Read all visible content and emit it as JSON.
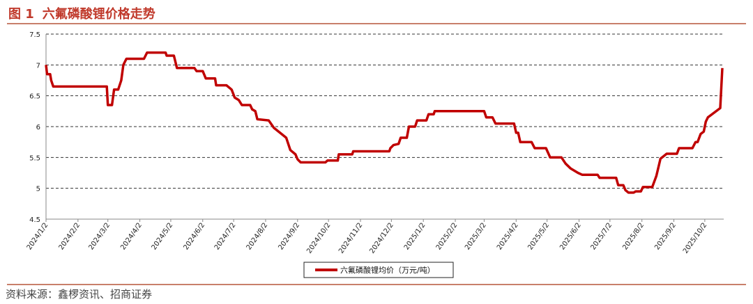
{
  "figure": {
    "number": "图 1",
    "title": "六氟磷酸锂价格走势",
    "source": "资料来源：鑫椤资讯、招商证券"
  },
  "chart_data": {
    "type": "line",
    "ylim": [
      4.5,
      7.5
    ],
    "yticks": [
      "4.5",
      "5",
      "5.5",
      "6",
      "6.5",
      "7",
      "7.5"
    ],
    "grid": "horizontal dashed",
    "legend_position": "bottom-center",
    "xticks": [
      "2024/1/2",
      "2024/2/2",
      "2024/3/2",
      "2024/4/2",
      "2024/5/2",
      "2024/6/2",
      "2024/7/2",
      "2024/8/2",
      "2024/9/2",
      "2024/10/2",
      "2024/11/2",
      "2024/12/2",
      "2025/1/2",
      "2025/2/2",
      "2025/3/2",
      "2025/4/2",
      "2025/5/2",
      "2025/6/2",
      "2025/7/2",
      "2025/8/2",
      "2025/9/2",
      "2025/10/2"
    ],
    "series": [
      {
        "name": "六氟磷酸锂均价（万元/吨）",
        "color": "#c00000",
        "points": [
          [
            "2024/1/2",
            7.0
          ],
          [
            "2024/1/3",
            6.85
          ],
          [
            "2024/1/6",
            6.85
          ],
          [
            "2024/1/7",
            6.75
          ],
          [
            "2024/1/9",
            6.65
          ],
          [
            "2024/3/1",
            6.65
          ],
          [
            "2024/3/2",
            6.35
          ],
          [
            "2024/3/6",
            6.35
          ],
          [
            "2024/3/8",
            6.6
          ],
          [
            "2024/3/12",
            6.6
          ],
          [
            "2024/3/15",
            6.75
          ],
          [
            "2024/3/17",
            7.0
          ],
          [
            "2024/3/20",
            7.1
          ],
          [
            "2024/4/6",
            7.1
          ],
          [
            "2024/4/9",
            7.2
          ],
          [
            "2024/4/27",
            7.2
          ],
          [
            "2024/4/28",
            7.15
          ],
          [
            "2024/5/5",
            7.15
          ],
          [
            "2024/5/8",
            6.95
          ],
          [
            "2024/5/25",
            6.95
          ],
          [
            "2024/5/27",
            6.9
          ],
          [
            "2024/6/2",
            6.9
          ],
          [
            "2024/6/5",
            6.78
          ],
          [
            "2024/6/14",
            6.78
          ],
          [
            "2024/6/15",
            6.67
          ],
          [
            "2024/6/25",
            6.67
          ],
          [
            "2024/6/30",
            6.6
          ],
          [
            "2024/7/3",
            6.47
          ],
          [
            "2024/7/7",
            6.43
          ],
          [
            "2024/7/10",
            6.35
          ],
          [
            "2024/7/18",
            6.35
          ],
          [
            "2024/7/20",
            6.28
          ],
          [
            "2024/7/23",
            6.25
          ],
          [
            "2024/7/25",
            6.12
          ],
          [
            "2024/8/5",
            6.1
          ],
          [
            "2024/8/10",
            5.98
          ],
          [
            "2024/8/16",
            5.9
          ],
          [
            "2024/8/22",
            5.82
          ],
          [
            "2024/8/26",
            5.62
          ],
          [
            "2024/8/31",
            5.55
          ],
          [
            "2024/9/2",
            5.47
          ],
          [
            "2024/9/5",
            5.42
          ],
          [
            "2024/9/29",
            5.42
          ],
          [
            "2024/10/1",
            5.45
          ],
          [
            "2024/10/11",
            5.45
          ],
          [
            "2024/10/12",
            5.55
          ],
          [
            "2024/10/25",
            5.55
          ],
          [
            "2024/10/26",
            5.6
          ],
          [
            "2024/11/30",
            5.6
          ],
          [
            "2024/12/1",
            5.65
          ],
          [
            "2024/12/4",
            5.7
          ],
          [
            "2024/12/9",
            5.72
          ],
          [
            "2024/12/11",
            5.82
          ],
          [
            "2024/12/17",
            5.82
          ],
          [
            "2024/12/19",
            6.0
          ],
          [
            "2024/12/25",
            6.0
          ],
          [
            "2024/12/27",
            6.1
          ],
          [
            "2025/1/5",
            6.1
          ],
          [
            "2025/1/7",
            6.2
          ],
          [
            "2025/1/12",
            6.2
          ],
          [
            "2025/1/13",
            6.25
          ],
          [
            "2025/3/2",
            6.25
          ],
          [
            "2025/3/4",
            6.15
          ],
          [
            "2025/3/10",
            6.15
          ],
          [
            "2025/3/13",
            6.05
          ],
          [
            "2025/3/31",
            6.05
          ],
          [
            "2025/4/2",
            5.9
          ],
          [
            "2025/4/4",
            5.9
          ],
          [
            "2025/4/6",
            5.75
          ],
          [
            "2025/4/17",
            5.75
          ],
          [
            "2025/4/20",
            5.65
          ],
          [
            "2025/5/1",
            5.65
          ],
          [
            "2025/5/5",
            5.5
          ],
          [
            "2025/5/16",
            5.5
          ],
          [
            "2025/5/20",
            5.4
          ],
          [
            "2025/5/25",
            5.32
          ],
          [
            "2025/6/1",
            5.25
          ],
          [
            "2025/6/5",
            5.22
          ],
          [
            "2025/6/20",
            5.22
          ],
          [
            "2025/6/22",
            5.17
          ],
          [
            "2025/7/8",
            5.17
          ],
          [
            "2025/7/10",
            5.05
          ],
          [
            "2025/7/15",
            5.05
          ],
          [
            "2025/7/17",
            4.97
          ],
          [
            "2025/7/20",
            4.93
          ],
          [
            "2025/7/25",
            4.93
          ],
          [
            "2025/7/27",
            4.95
          ],
          [
            "2025/8/1",
            4.95
          ],
          [
            "2025/8/3",
            5.02
          ],
          [
            "2025/8/12",
            5.02
          ],
          [
            "2025/8/16",
            5.2
          ],
          [
            "2025/8/20",
            5.48
          ],
          [
            "2025/8/23",
            5.52
          ],
          [
            "2025/8/26",
            5.56
          ],
          [
            "2025/9/5",
            5.56
          ],
          [
            "2025/9/7",
            5.65
          ],
          [
            "2025/9/20",
            5.65
          ],
          [
            "2025/9/23",
            5.75
          ],
          [
            "2025/9/25",
            5.75
          ],
          [
            "2025/9/28",
            5.88
          ],
          [
            "2025/10/1",
            5.92
          ],
          [
            "2025/10/3",
            6.08
          ],
          [
            "2025/10/5",
            6.15
          ],
          [
            "2025/10/17",
            6.3
          ],
          [
            "2025/10/19",
            6.95
          ]
        ]
      }
    ]
  }
}
